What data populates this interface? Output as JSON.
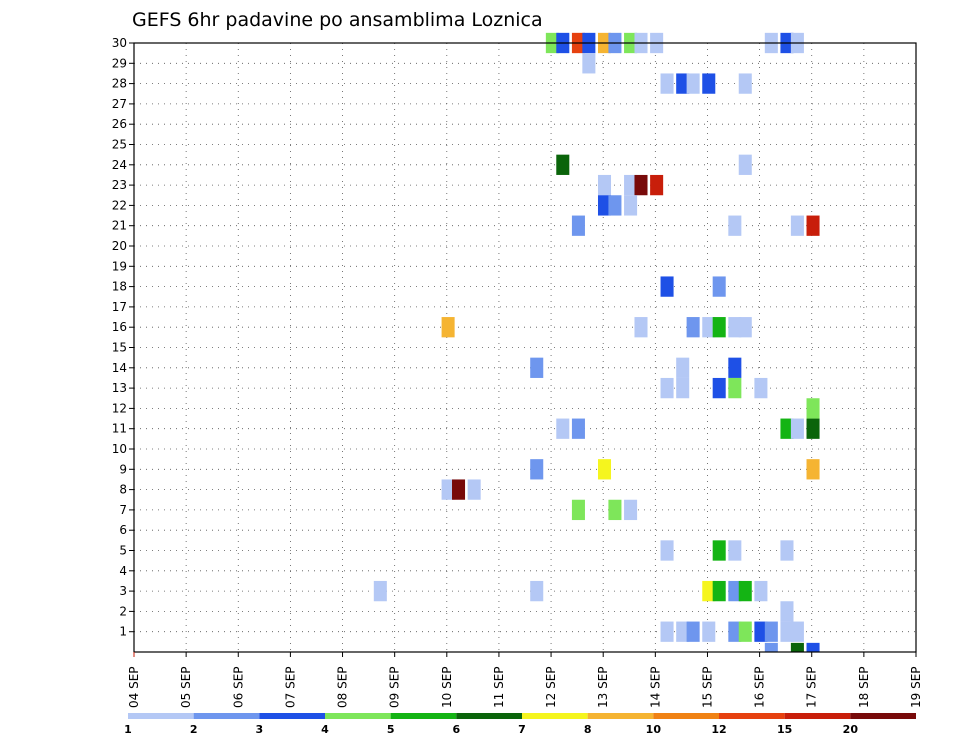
{
  "chart_data": {
    "type": "heatmap",
    "title": "GEFS 6hr padavine po ansamblima Loznica",
    "xlabel": "",
    "ylabel": "",
    "x_range": [
      "04 SEP",
      "19 SEP"
    ],
    "x_ticks": [
      "04 SEP",
      "05 SEP",
      "06 SEP",
      "07 SEP",
      "08 SEP",
      "09 SEP",
      "10 SEP",
      "11 SEP",
      "12 SEP",
      "13 SEP",
      "14 SEP",
      "15 SEP",
      "16 SEP",
      "17 SEP",
      "18 SEP",
      "19 SEP"
    ],
    "y_ticks": [
      "1",
      "2",
      "3",
      "4",
      "5",
      "6",
      "7",
      "8",
      "9",
      "10",
      "11",
      "12",
      "13",
      "14",
      "15",
      "16",
      "17",
      "18",
      "19",
      "20",
      "21",
      "22",
      "23",
      "24",
      "25",
      "26",
      "27",
      "28",
      "29",
      "30"
    ],
    "ylim": [
      0,
      30
    ],
    "grid": true,
    "legend": {
      "placement": "bottom",
      "labels": [
        "1",
        "2",
        "3",
        "4",
        "5",
        "6",
        "7",
        "8",
        "10",
        "12",
        "15",
        "20"
      ],
      "colors": [
        "#b4c8f5",
        "#6e96ee",
        "#1e50e6",
        "#7ee65a",
        "#14b414",
        "#0a640a",
        "#f5f51e",
        "#f5b432",
        "#f08214",
        "#e6410f",
        "#c81e0a",
        "#780a0a"
      ]
    },
    "cells": [
      {
        "member": 30,
        "t": 38.9,
        "c": 4
      },
      {
        "member": 30,
        "t": 39.1,
        "c": 3
      },
      {
        "member": 30,
        "t": 39.4,
        "c": 10
      },
      {
        "member": 30,
        "t": 39.6,
        "c": 3
      },
      {
        "member": 30,
        "t": 39.9,
        "c": 8
      },
      {
        "member": 30,
        "t": 40.1,
        "c": 2
      },
      {
        "member": 30,
        "t": 40.4,
        "c": 4
      },
      {
        "member": 30,
        "t": 40.6,
        "c": 1
      },
      {
        "member": 30,
        "t": 40.9,
        "c": 1
      },
      {
        "member": 30,
        "t": 43.1,
        "c": 1
      },
      {
        "member": 30,
        "t": 43.4,
        "c": 3
      },
      {
        "member": 30,
        "t": 43.6,
        "c": 1
      },
      {
        "member": 29,
        "t": 39.6,
        "c": 1
      },
      {
        "member": 28,
        "t": 41.1,
        "c": 1
      },
      {
        "member": 28,
        "t": 41.4,
        "c": 3
      },
      {
        "member": 28,
        "t": 41.6,
        "c": 1
      },
      {
        "member": 28,
        "t": 41.9,
        "c": 3
      },
      {
        "member": 28,
        "t": 42.6,
        "c": 1
      },
      {
        "member": 24,
        "t": 39.1,
        "c": 6
      },
      {
        "member": 24,
        "t": 42.6,
        "c": 1
      },
      {
        "member": 23,
        "t": 39.9,
        "c": 1
      },
      {
        "member": 23,
        "t": 40.4,
        "c": 1
      },
      {
        "member": 23,
        "t": 40.6,
        "c": 12
      },
      {
        "member": 23,
        "t": 40.9,
        "c": 11
      },
      {
        "member": 22,
        "t": 39.9,
        "c": 3
      },
      {
        "member": 22,
        "t": 40.1,
        "c": 2
      },
      {
        "member": 22,
        "t": 40.4,
        "c": 1
      },
      {
        "member": 21,
        "t": 39.4,
        "c": 2
      },
      {
        "member": 21,
        "t": 42.4,
        "c": 1
      },
      {
        "member": 21,
        "t": 43.6,
        "c": 1
      },
      {
        "member": 21,
        "t": 43.9,
        "c": 11
      },
      {
        "member": 18,
        "t": 41.1,
        "c": 3
      },
      {
        "member": 18,
        "t": 42.1,
        "c": 2
      },
      {
        "member": 16,
        "t": 36.9,
        "c": 8
      },
      {
        "member": 16,
        "t": 40.6,
        "c": 1
      },
      {
        "member": 16,
        "t": 41.6,
        "c": 2
      },
      {
        "member": 16,
        "t": 41.9,
        "c": 1
      },
      {
        "member": 16,
        "t": 42.1,
        "c": 5
      },
      {
        "member": 16,
        "t": 42.4,
        "c": 1
      },
      {
        "member": 16,
        "t": 42.6,
        "c": 1
      },
      {
        "member": 14,
        "t": 38.6,
        "c": 2
      },
      {
        "member": 14,
        "t": 41.4,
        "c": 1
      },
      {
        "member": 14,
        "t": 42.4,
        "c": 3
      },
      {
        "member": 13,
        "t": 41.1,
        "c": 1
      },
      {
        "member": 13,
        "t": 41.4,
        "c": 1
      },
      {
        "member": 13,
        "t": 42.1,
        "c": 3
      },
      {
        "member": 13,
        "t": 42.4,
        "c": 4
      },
      {
        "member": 13,
        "t": 42.9,
        "c": 1
      },
      {
        "member": 11,
        "t": 39.1,
        "c": 1
      },
      {
        "member": 11,
        "t": 39.4,
        "c": 2
      },
      {
        "member": 11,
        "t": 43.4,
        "c": 5
      },
      {
        "member": 11,
        "t": 43.6,
        "c": 1
      },
      {
        "member": 11,
        "t": 43.9,
        "c": 6
      },
      {
        "member": 12,
        "t": 43.9,
        "c": 4
      },
      {
        "member": 9,
        "t": 38.6,
        "c": 2
      },
      {
        "member": 9,
        "t": 39.9,
        "c": 7
      },
      {
        "member": 9,
        "t": 43.9,
        "c": 8
      },
      {
        "member": 8,
        "t": 36.9,
        "c": 1
      },
      {
        "member": 8,
        "t": 37.1,
        "c": 12
      },
      {
        "member": 8,
        "t": 37.4,
        "c": 1
      },
      {
        "member": 7,
        "t": 39.4,
        "c": 4
      },
      {
        "member": 7,
        "t": 40.1,
        "c": 4
      },
      {
        "member": 7,
        "t": 40.4,
        "c": 1
      },
      {
        "member": 5,
        "t": 41.1,
        "c": 1
      },
      {
        "member": 5,
        "t": 42.1,
        "c": 5
      },
      {
        "member": 5,
        "t": 42.4,
        "c": 1
      },
      {
        "member": 5,
        "t": 43.4,
        "c": 1
      },
      {
        "member": 3,
        "t": 35.6,
        "c": 1
      },
      {
        "member": 3,
        "t": 38.6,
        "c": 1
      },
      {
        "member": 3,
        "t": 41.9,
        "c": 7
      },
      {
        "member": 3,
        "t": 42.1,
        "c": 5
      },
      {
        "member": 3,
        "t": 42.4,
        "c": 2
      },
      {
        "member": 3,
        "t": 42.6,
        "c": 5
      },
      {
        "member": 3,
        "t": 42.9,
        "c": 1
      },
      {
        "member": 2,
        "t": 43.4,
        "c": 1
      },
      {
        "member": 1,
        "t": 41.1,
        "c": 1
      },
      {
        "member": 1,
        "t": 41.4,
        "c": 1
      },
      {
        "member": 1,
        "t": 41.6,
        "c": 2
      },
      {
        "member": 1,
        "t": 41.9,
        "c": 1
      },
      {
        "member": 1,
        "t": 42.4,
        "c": 2
      },
      {
        "member": 1,
        "t": 42.6,
        "c": 4
      },
      {
        "member": 1,
        "t": 42.9,
        "c": 3
      },
      {
        "member": 1,
        "t": 43.1,
        "c": 2
      },
      {
        "member": 1,
        "t": 43.4,
        "c": 1
      },
      {
        "member": 1,
        "t": 43.6,
        "c": 1
      },
      {
        "member": 0,
        "t": 43.1,
        "c": 2
      },
      {
        "member": 0,
        "t": 43.6,
        "c": 6
      },
      {
        "member": 0,
        "t": 43.9,
        "c": 3
      }
    ]
  }
}
